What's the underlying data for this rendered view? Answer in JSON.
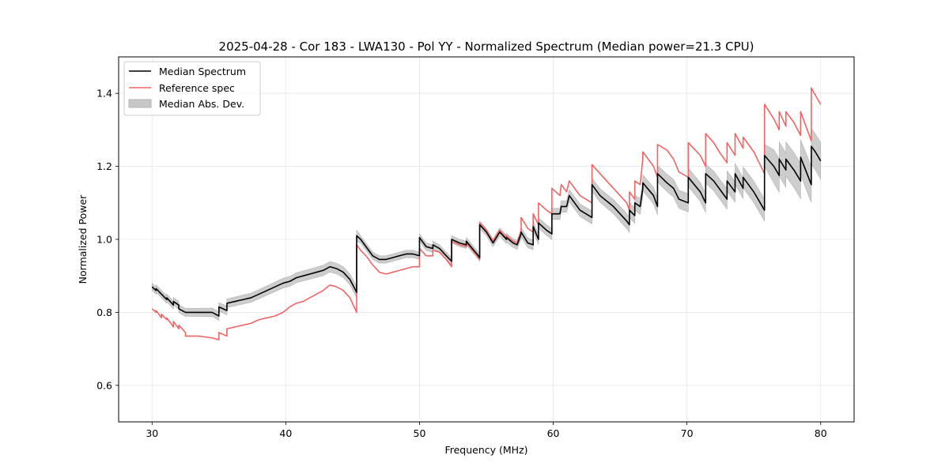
{
  "chart_data": {
    "type": "line",
    "title": "2025-04-28 - Cor 183 - LWA130 - Pol YY - Normalized Spectrum (Median power=21.3 CPU)",
    "xlabel": "Frequency (MHz)",
    "ylabel": "Normalized Power",
    "xlim": [
      27.5,
      82.5
    ],
    "ylim": [
      0.5,
      1.5
    ],
    "xticks": [
      30,
      40,
      50,
      60,
      70,
      80
    ],
    "yticks": [
      0.6,
      0.8,
      1.0,
      1.2,
      1.4
    ],
    "xtick_labels": [
      "30",
      "40",
      "50",
      "60",
      "70",
      "80"
    ],
    "ytick_labels": [
      "0.6",
      "0.8",
      "1.0",
      "1.2",
      "1.4"
    ],
    "grid": true,
    "legend": {
      "placement": "top-left",
      "entries": [
        {
          "label": "Median Spectrum",
          "kind": "line",
          "color": "#000000"
        },
        {
          "label": "Reference spec",
          "kind": "line",
          "color": "#f06464"
        },
        {
          "label": "Median Abs. Dev.",
          "kind": "patch",
          "color": "#c8c8c8"
        }
      ]
    },
    "series": [
      {
        "name": "Median Spectrum",
        "color": "#000000",
        "x": [
          30.0,
          30.3,
          30.3,
          30.7,
          30.7,
          31.1,
          31.1,
          31.6,
          31.6,
          32.0,
          32.0,
          32.5,
          32.5,
          33.5,
          34.5,
          35.0,
          35.0,
          35.6,
          35.6,
          36.2,
          36.8,
          37.4,
          38.0,
          38.6,
          39.2,
          39.8,
          40.3,
          40.8,
          41.3,
          41.8,
          42.3,
          42.8,
          43.3,
          43.8,
          44.3,
          44.8,
          45.3,
          45.3,
          45.6,
          46.0,
          46.5,
          47.0,
          47.5,
          48.0,
          48.5,
          49.0,
          49.5,
          50.0,
          50.0,
          50.5,
          51.0,
          51.0,
          51.5,
          52.0,
          52.4,
          52.4,
          53.0,
          53.5,
          53.5,
          54.3,
          54.5,
          54.5,
          55.0,
          55.5,
          56.0,
          56.5,
          56.5,
          57.0,
          57.3,
          57.6,
          57.6,
          58.1,
          58.5,
          58.5,
          58.9,
          58.9,
          59.5,
          59.9,
          59.9,
          60.5,
          60.6,
          61.0,
          61.2,
          62.0,
          62.9,
          62.9,
          63.5,
          64.5,
          65.5,
          65.7,
          65.7,
          66.1,
          66.1,
          66.5,
          66.7,
          66.7,
          67.5,
          67.8,
          67.8,
          68.5,
          69.0,
          69.4,
          70.1,
          70.1,
          71.0,
          71.4,
          71.4,
          72.0,
          72.5,
          73.0,
          73.0,
          73.6,
          73.6,
          74.2,
          74.2,
          75.0,
          75.8,
          75.8,
          76.5,
          76.9,
          76.9,
          77.4,
          77.4,
          78.0,
          78.5,
          78.5,
          79.3,
          79.3,
          79.6,
          80.0
        ],
        "y": [
          0.87,
          0.86,
          0.865,
          0.85,
          0.85,
          0.835,
          0.84,
          0.82,
          0.83,
          0.82,
          0.81,
          0.8,
          0.8,
          0.8,
          0.8,
          0.79,
          0.815,
          0.805,
          0.825,
          0.83,
          0.835,
          0.84,
          0.85,
          0.86,
          0.87,
          0.88,
          0.885,
          0.895,
          0.9,
          0.905,
          0.91,
          0.915,
          0.925,
          0.92,
          0.91,
          0.89,
          0.855,
          1.01,
          1.0,
          0.98,
          0.955,
          0.945,
          0.945,
          0.95,
          0.955,
          0.96,
          0.96,
          0.955,
          1.005,
          0.98,
          0.975,
          0.985,
          0.975,
          0.955,
          0.94,
          1.0,
          0.99,
          0.985,
          0.995,
          0.96,
          0.95,
          1.04,
          1.02,
          0.99,
          1.02,
          1.0,
          1.005,
          0.99,
          0.985,
          1.015,
          1.02,
          0.99,
          0.985,
          1.035,
          1.0,
          1.045,
          1.025,
          1.015,
          1.07,
          1.07,
          1.09,
          1.09,
          1.12,
          1.08,
          1.06,
          1.15,
          1.12,
          1.09,
          1.05,
          1.04,
          1.08,
          1.065,
          1.1,
          1.09,
          1.14,
          1.155,
          1.12,
          1.09,
          1.18,
          1.155,
          1.14,
          1.11,
          1.1,
          1.17,
          1.13,
          1.1,
          1.18,
          1.16,
          1.135,
          1.11,
          1.16,
          1.13,
          1.18,
          1.14,
          1.17,
          1.13,
          1.08,
          1.23,
          1.2,
          1.175,
          1.22,
          1.19,
          1.22,
          1.19,
          1.16,
          1.225,
          1.15,
          1.255,
          1.24,
          1.215
        ]
      },
      {
        "name": "Reference spec",
        "color": "#f06464",
        "x": [
          30.0,
          30.3,
          30.3,
          30.7,
          30.7,
          31.1,
          31.1,
          31.6,
          31.6,
          32.0,
          32.0,
          32.5,
          32.5,
          33.5,
          34.5,
          35.0,
          35.0,
          35.6,
          35.6,
          36.2,
          36.8,
          37.4,
          38.0,
          38.6,
          39.2,
          39.8,
          40.3,
          40.8,
          41.3,
          41.8,
          42.3,
          42.8,
          43.3,
          43.8,
          44.3,
          44.8,
          45.3,
          45.3,
          45.6,
          46.0,
          46.5,
          47.0,
          47.5,
          48.0,
          48.5,
          49.0,
          49.5,
          50.0,
          50.0,
          50.5,
          51.0,
          51.0,
          51.5,
          52.0,
          52.4,
          52.4,
          53.0,
          53.5,
          53.5,
          54.3,
          54.5,
          54.5,
          55.0,
          55.5,
          56.0,
          56.5,
          56.5,
          57.0,
          57.3,
          57.6,
          57.6,
          58.1,
          58.5,
          58.5,
          58.9,
          58.9,
          59.5,
          59.9,
          59.9,
          60.5,
          60.6,
          61.0,
          61.2,
          62.0,
          62.9,
          62.9,
          63.5,
          64.5,
          65.5,
          65.7,
          65.7,
          66.1,
          66.1,
          66.5,
          66.7,
          66.7,
          67.5,
          67.8,
          67.8,
          68.5,
          69.0,
          69.4,
          70.1,
          70.1,
          71.0,
          71.4,
          71.4,
          72.0,
          72.5,
          73.0,
          73.0,
          73.6,
          73.6,
          74.2,
          74.2,
          75.0,
          75.8,
          75.8,
          76.5,
          76.9,
          76.9,
          77.4,
          77.4,
          78.0,
          78.5,
          78.5,
          79.3,
          79.3,
          79.6,
          80.0
        ],
        "y": [
          0.81,
          0.8,
          0.805,
          0.785,
          0.795,
          0.78,
          0.785,
          0.76,
          0.775,
          0.755,
          0.765,
          0.745,
          0.735,
          0.735,
          0.73,
          0.725,
          0.745,
          0.735,
          0.755,
          0.76,
          0.765,
          0.77,
          0.78,
          0.785,
          0.79,
          0.8,
          0.815,
          0.825,
          0.83,
          0.84,
          0.85,
          0.86,
          0.875,
          0.87,
          0.86,
          0.84,
          0.8,
          0.985,
          0.97,
          0.955,
          0.93,
          0.91,
          0.905,
          0.91,
          0.915,
          0.92,
          0.925,
          0.925,
          0.975,
          0.955,
          0.955,
          0.97,
          0.965,
          0.945,
          0.925,
          0.995,
          0.985,
          0.98,
          0.99,
          0.955,
          0.945,
          1.045,
          1.025,
          0.995,
          1.025,
          1.005,
          1.01,
          0.995,
          0.99,
          1.025,
          1.06,
          1.03,
          1.02,
          1.07,
          1.04,
          1.1,
          1.08,
          1.07,
          1.14,
          1.12,
          1.15,
          1.13,
          1.16,
          1.12,
          1.1,
          1.205,
          1.18,
          1.14,
          1.1,
          1.08,
          1.13,
          1.11,
          1.16,
          1.15,
          1.22,
          1.24,
          1.2,
          1.17,
          1.26,
          1.245,
          1.22,
          1.185,
          1.17,
          1.265,
          1.23,
          1.2,
          1.29,
          1.265,
          1.235,
          1.21,
          1.265,
          1.23,
          1.29,
          1.25,
          1.28,
          1.24,
          1.18,
          1.37,
          1.33,
          1.3,
          1.35,
          1.31,
          1.35,
          1.32,
          1.285,
          1.35,
          1.27,
          1.415,
          1.395,
          1.37
        ]
      }
    ],
    "mad_band": {
      "name": "Median Abs. Dev.",
      "color": "#c8c8c8",
      "note": "shaded band around Median Spectrum",
      "x": [
        30.0,
        45.3,
        45.3,
        55.0,
        60.0,
        65.0,
        70.0,
        75.8,
        75.8,
        80.0
      ],
      "half_width": [
        0.01,
        0.015,
        0.01,
        0.01,
        0.015,
        0.02,
        0.025,
        0.03,
        0.045,
        0.05
      ]
    }
  }
}
